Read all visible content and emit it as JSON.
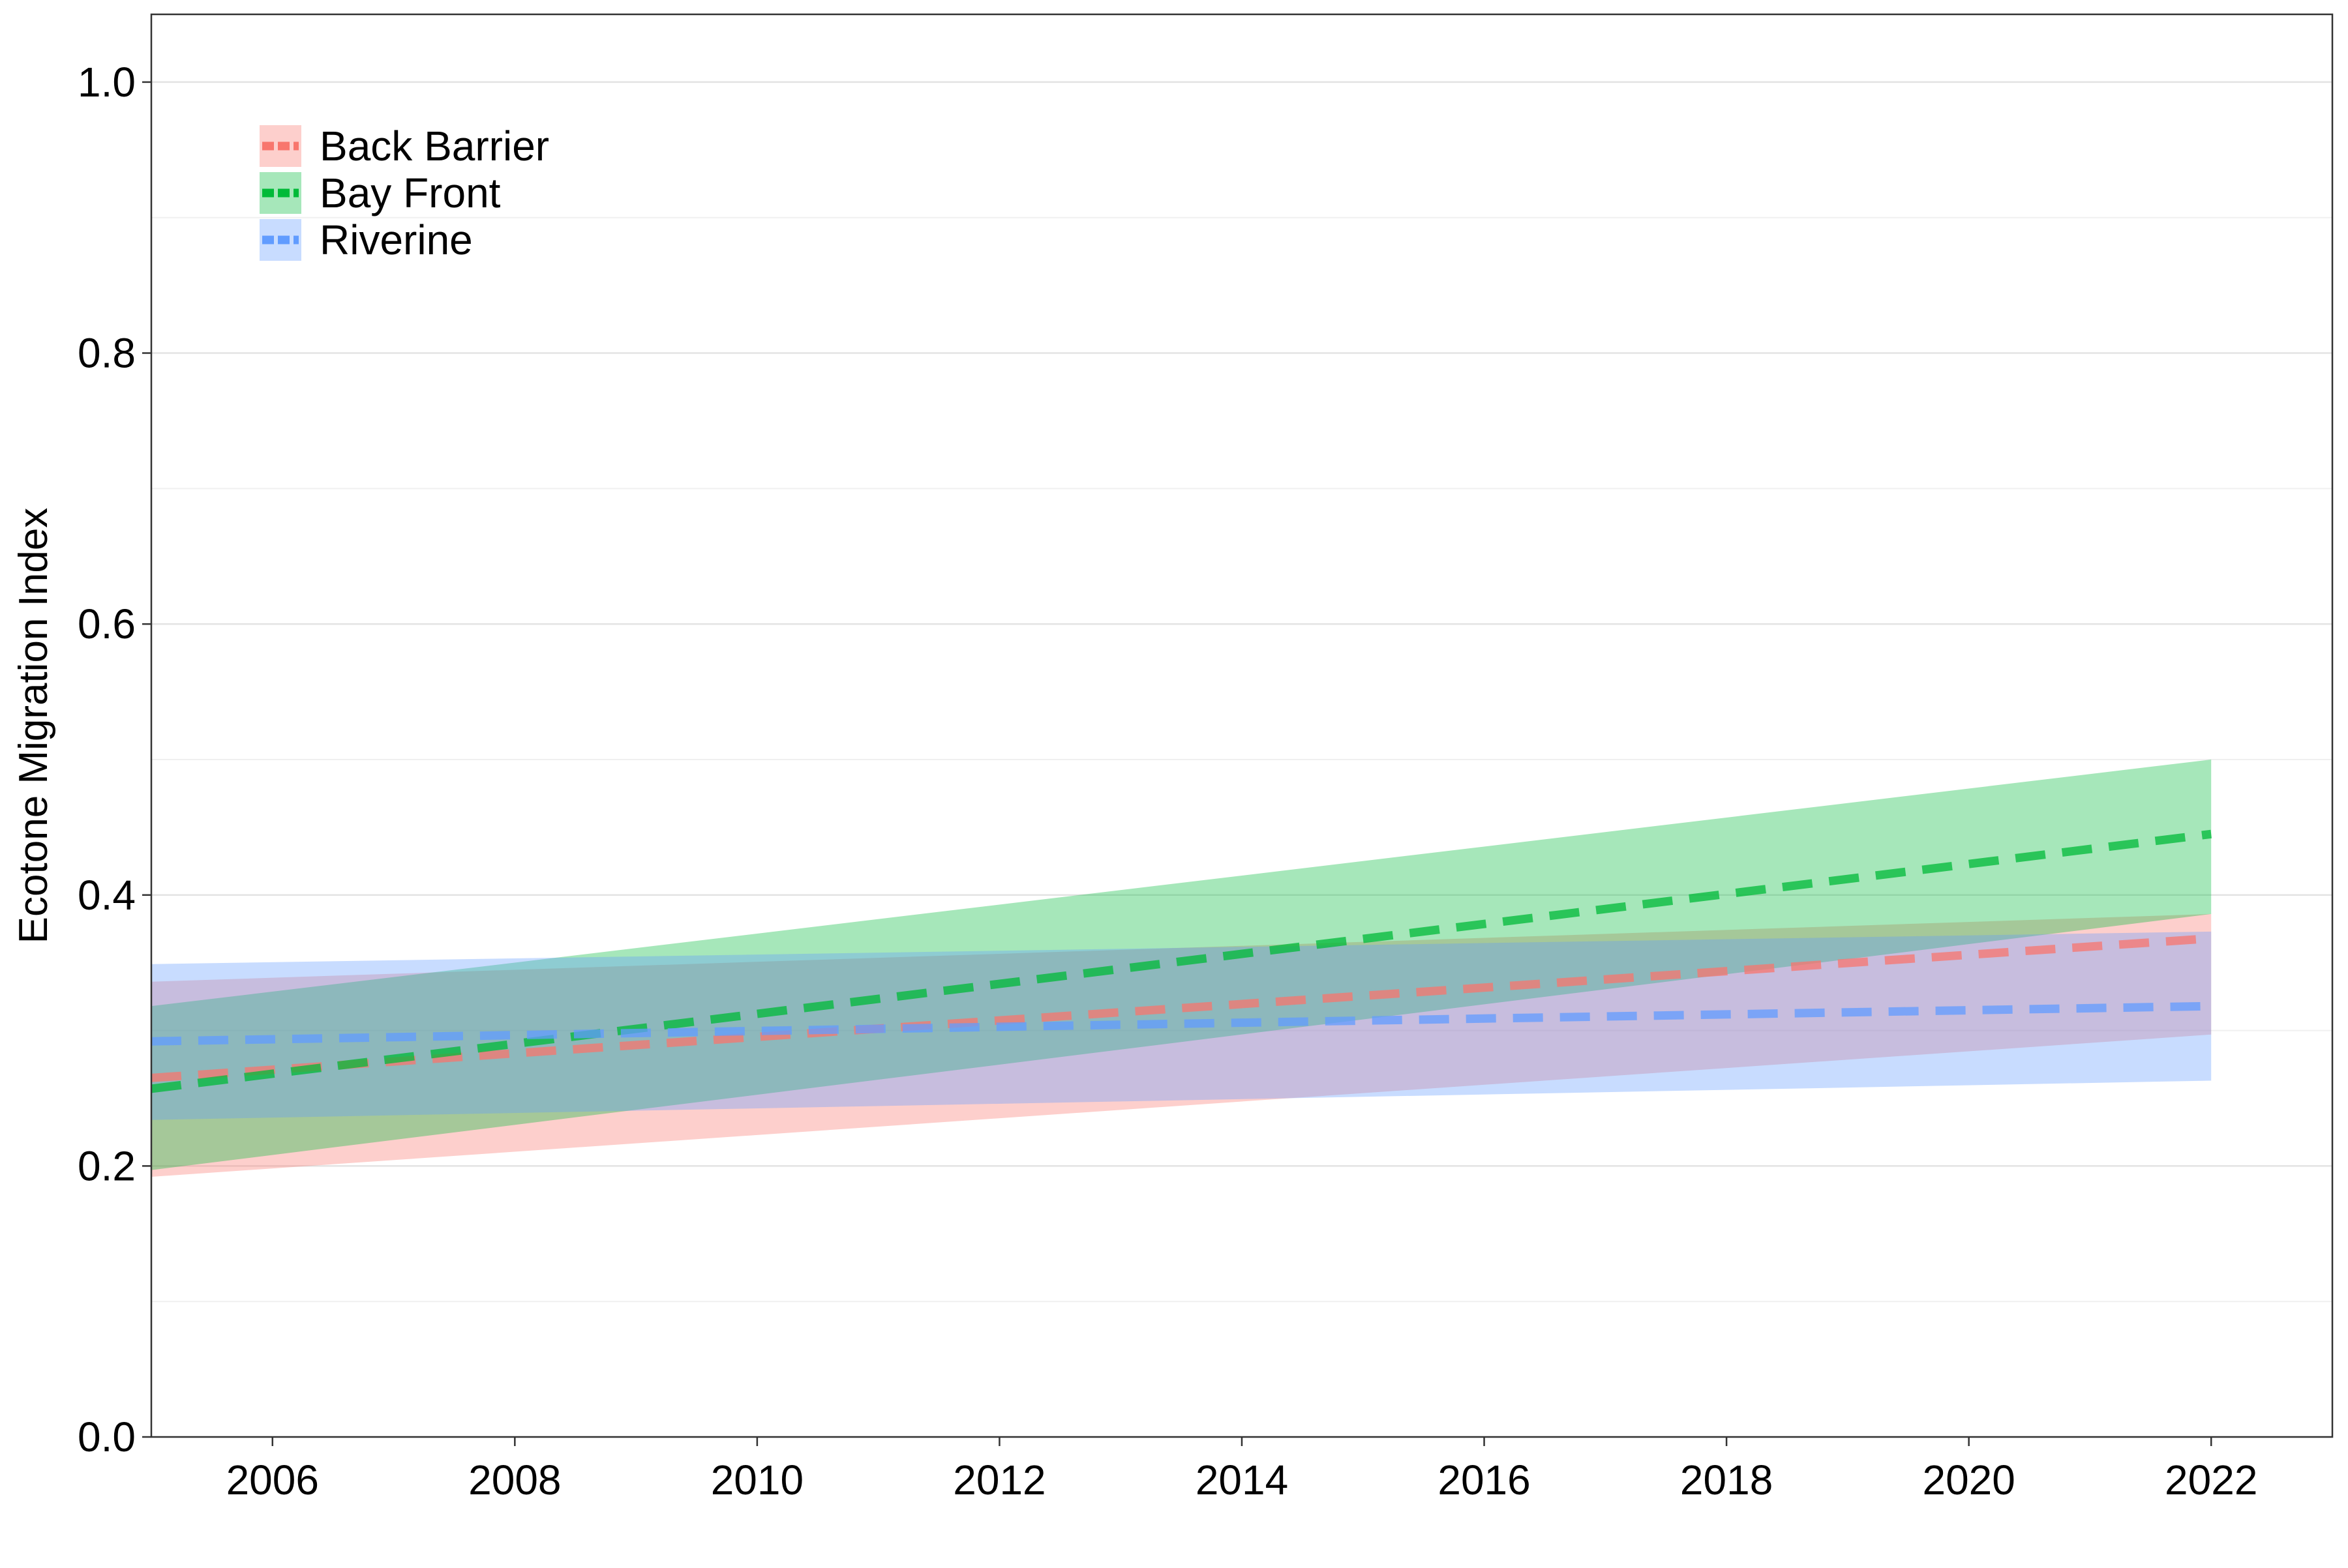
{
  "chart_data": {
    "type": "line",
    "title": "",
    "xlabel": "",
    "ylabel": "Ecotone Migration Index",
    "xlim": [
      2005,
      2023
    ],
    "ylim": [
      0,
      1.05
    ],
    "x_ticks": [
      2006,
      2008,
      2010,
      2012,
      2014,
      2016,
      2018,
      2020,
      2022
    ],
    "x_tick_labels": [
      "2006",
      "2008",
      "2010",
      "2012",
      "2014",
      "2016",
      "2018",
      "2020",
      "2022"
    ],
    "y_ticks": [
      0.0,
      0.2,
      0.4,
      0.6,
      0.8,
      1.0
    ],
    "y_tick_labels": [
      "0.0",
      "0.2",
      "0.4",
      "0.6",
      "0.8",
      "1.0"
    ],
    "y_minor_grid": [
      0.1,
      0.3,
      0.5,
      0.7,
      0.9
    ],
    "grid": "horizontal",
    "legend_position": "top-left",
    "line_style": "dashed",
    "series": [
      {
        "name": "Back Barrier",
        "color": "#F8766D",
        "x": [
          2005,
          2022
        ],
        "fit": [
          0.265,
          0.368
        ],
        "lower": [
          0.192,
          0.297
        ],
        "upper": [
          0.336,
          0.386
        ]
      },
      {
        "name": "Bay Front",
        "color": "#00BA38",
        "x": [
          2005,
          2022
        ],
        "fit": [
          0.257,
          0.445
        ],
        "lower": [
          0.197,
          0.386
        ],
        "upper": [
          0.318,
          0.5
        ]
      },
      {
        "name": "Riverine",
        "color": "#619CFF",
        "x": [
          2005,
          2022
        ],
        "fit": [
          0.292,
          0.318
        ],
        "lower": [
          0.234,
          0.263
        ],
        "upper": [
          0.349,
          0.373
        ]
      }
    ]
  }
}
